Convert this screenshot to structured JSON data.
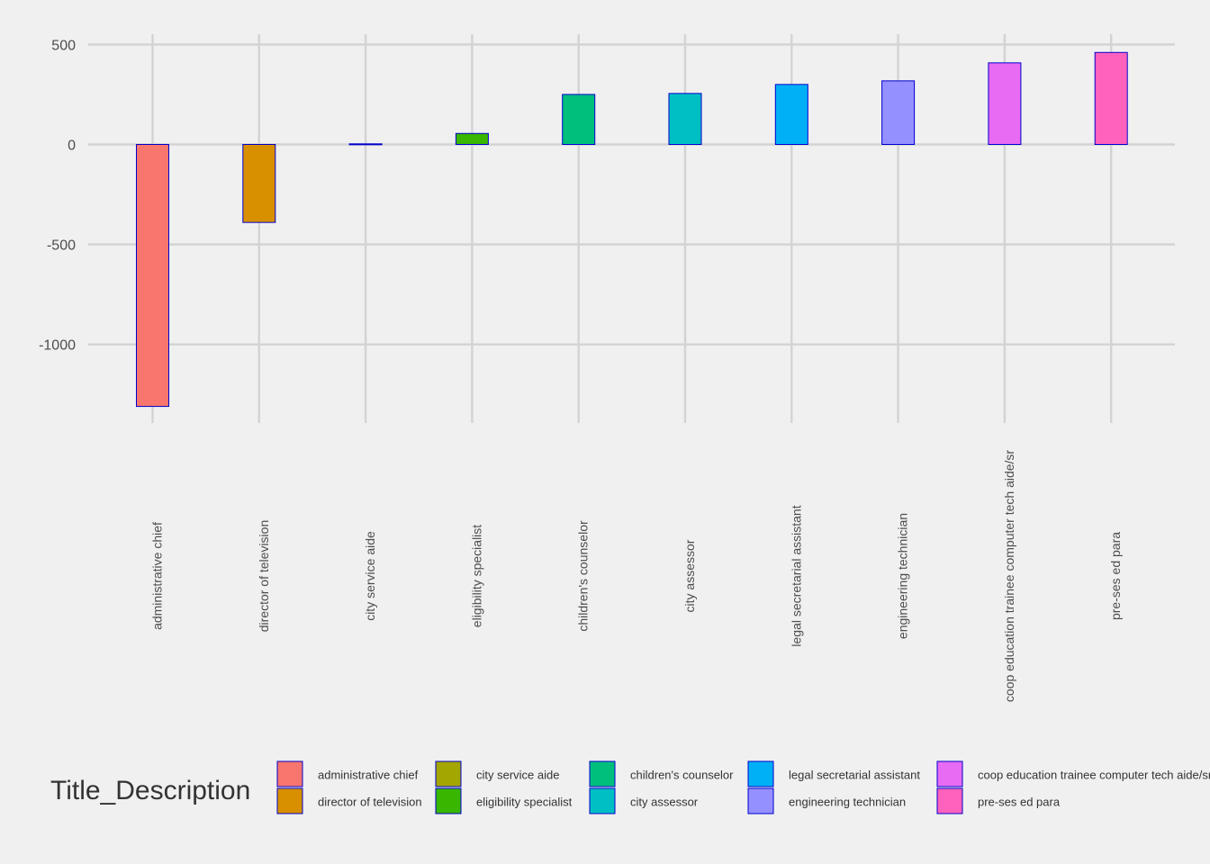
{
  "chart_data": {
    "type": "bar",
    "title": "",
    "xlabel": "",
    "ylabel": "",
    "categories": [
      "administrative chief",
      "director of television",
      "city service aide",
      "eligibility specialist",
      "children's counselor",
      "city assessor",
      "legal secretarial assistant",
      "engineering technician",
      "coop education trainee computer tech aide/sr",
      "pre-ses ed para"
    ],
    "values": [
      -1310,
      -390,
      3,
      55,
      250,
      255,
      300,
      318,
      408,
      460
    ],
    "colors": [
      "#F8766D",
      "#D89000",
      "#A3A500",
      "#39B600",
      "#00BF7D",
      "#00BFC4",
      "#00B0F6",
      "#9590FF",
      "#E76BF3",
      "#FF62BC"
    ],
    "bar_border_color": "#0000CD",
    "ylim": [
      -1320,
      550
    ],
    "yticks": [
      500,
      0,
      -500,
      -1000
    ],
    "ytick_labels": [
      "500",
      "0",
      "-500",
      "-1000"
    ],
    "grid": true,
    "legend": {
      "title": "Title_Description",
      "placement": "bottom",
      "entries": [
        "administrative chief",
        "director of television",
        "city service aide",
        "eligibility specialist",
        "children's counselor",
        "city assessor",
        "legal secretarial assistant",
        "engineering technician",
        "coop education trainee computer tech aide/sr",
        "pre-ses ed para"
      ]
    }
  }
}
